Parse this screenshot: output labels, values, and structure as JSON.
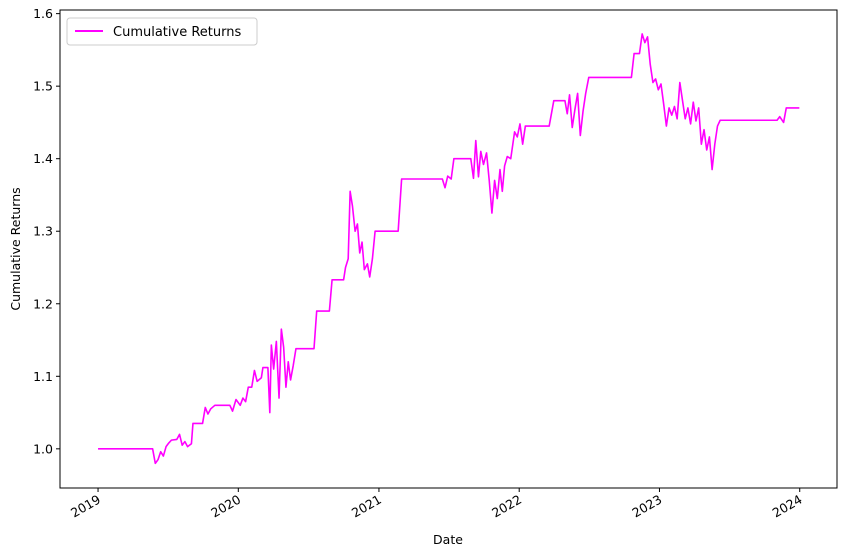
{
  "chart_data": {
    "type": "line",
    "xlabel": "Date",
    "ylabel": "Cumulative Returns",
    "legend": {
      "placement": "top-left",
      "entries": [
        "Cumulative Returns"
      ]
    },
    "grid": false,
    "xlim": [
      "2018-09-24",
      "2024-04-07"
    ],
    "ylim": [
      0.946,
      1.605
    ],
    "x_ticks": [
      {
        "date": "2019-01-01",
        "label": "2019"
      },
      {
        "date": "2020-01-01",
        "label": "2020"
      },
      {
        "date": "2021-01-01",
        "label": "2021"
      },
      {
        "date": "2022-01-01",
        "label": "2022"
      },
      {
        "date": "2023-01-01",
        "label": "2023"
      },
      {
        "date": "2024-01-01",
        "label": "2024"
      }
    ],
    "y_ticks": [
      1.0,
      1.1,
      1.2,
      1.3,
      1.4,
      1.5,
      1.6
    ],
    "series": [
      {
        "name": "Cumulative Returns",
        "color": "#ff00ff",
        "points": [
          [
            "2019-01-01",
            1.0
          ],
          [
            "2019-05-23",
            1.0
          ],
          [
            "2019-05-30",
            0.98
          ],
          [
            "2019-06-06",
            0.985
          ],
          [
            "2019-06-13",
            0.996
          ],
          [
            "2019-06-20",
            0.99
          ],
          [
            "2019-06-27",
            1.003
          ],
          [
            "2019-07-04",
            1.008
          ],
          [
            "2019-07-11",
            1.012
          ],
          [
            "2019-07-25",
            1.013
          ],
          [
            "2019-08-01",
            1.02
          ],
          [
            "2019-08-08",
            1.005
          ],
          [
            "2019-08-15",
            1.01
          ],
          [
            "2019-08-22",
            1.003
          ],
          [
            "2019-09-01",
            1.007
          ],
          [
            "2019-09-05",
            1.035
          ],
          [
            "2019-09-30",
            1.035
          ],
          [
            "2019-10-07",
            1.057
          ],
          [
            "2019-10-14",
            1.048
          ],
          [
            "2019-10-21",
            1.055
          ],
          [
            "2019-11-01",
            1.06
          ],
          [
            "2019-12-10",
            1.06
          ],
          [
            "2019-12-17",
            1.052
          ],
          [
            "2019-12-26",
            1.068
          ],
          [
            "2020-01-06",
            1.06
          ],
          [
            "2020-01-13",
            1.07
          ],
          [
            "2020-01-20",
            1.065
          ],
          [
            "2020-01-27",
            1.085
          ],
          [
            "2020-02-05",
            1.085
          ],
          [
            "2020-02-12",
            1.108
          ],
          [
            "2020-02-19",
            1.093
          ],
          [
            "2020-03-01",
            1.098
          ],
          [
            "2020-03-05",
            1.112
          ],
          [
            "2020-03-18",
            1.112
          ],
          [
            "2020-03-23",
            1.05
          ],
          [
            "2020-03-27",
            1.143
          ],
          [
            "2020-04-02",
            1.11
          ],
          [
            "2020-04-09",
            1.148
          ],
          [
            "2020-04-16",
            1.07
          ],
          [
            "2020-04-22",
            1.165
          ],
          [
            "2020-04-28",
            1.14
          ],
          [
            "2020-05-04",
            1.085
          ],
          [
            "2020-05-10",
            1.12
          ],
          [
            "2020-05-16",
            1.095
          ],
          [
            "2020-05-23",
            1.115
          ],
          [
            "2020-05-30",
            1.138
          ],
          [
            "2020-07-16",
            1.138
          ],
          [
            "2020-07-23",
            1.19
          ],
          [
            "2020-08-25",
            1.19
          ],
          [
            "2020-09-01",
            1.233
          ],
          [
            "2020-10-01",
            1.233
          ],
          [
            "2020-10-06",
            1.25
          ],
          [
            "2020-10-13",
            1.262
          ],
          [
            "2020-10-18",
            1.355
          ],
          [
            "2020-10-24",
            1.335
          ],
          [
            "2020-10-31",
            1.3
          ],
          [
            "2020-11-06",
            1.31
          ],
          [
            "2020-11-12",
            1.27
          ],
          [
            "2020-11-18",
            1.285
          ],
          [
            "2020-11-24",
            1.247
          ],
          [
            "2020-12-02",
            1.255
          ],
          [
            "2020-12-08",
            1.237
          ],
          [
            "2020-12-15",
            1.262
          ],
          [
            "2020-12-22",
            1.3
          ],
          [
            "2021-02-20",
            1.3
          ],
          [
            "2021-03-01",
            1.372
          ],
          [
            "2021-06-15",
            1.372
          ],
          [
            "2021-06-22",
            1.36
          ],
          [
            "2021-06-29",
            1.376
          ],
          [
            "2021-07-08",
            1.372
          ],
          [
            "2021-07-15",
            1.4
          ],
          [
            "2021-08-28",
            1.4
          ],
          [
            "2021-09-04",
            1.373
          ],
          [
            "2021-09-10",
            1.425
          ],
          [
            "2021-09-17",
            1.375
          ],
          [
            "2021-09-23",
            1.41
          ],
          [
            "2021-09-30",
            1.392
          ],
          [
            "2021-10-08",
            1.408
          ],
          [
            "2021-10-15",
            1.37
          ],
          [
            "2021-10-22",
            1.325
          ],
          [
            "2021-10-29",
            1.37
          ],
          [
            "2021-11-05",
            1.345
          ],
          [
            "2021-11-12",
            1.385
          ],
          [
            "2021-11-18",
            1.355
          ],
          [
            "2021-11-24",
            1.39
          ],
          [
            "2021-12-01",
            1.403
          ],
          [
            "2021-12-10",
            1.4
          ],
          [
            "2021-12-20",
            1.437
          ],
          [
            "2021-12-27",
            1.43
          ],
          [
            "2022-01-03",
            1.448
          ],
          [
            "2022-01-10",
            1.42
          ],
          [
            "2022-01-17",
            1.445
          ],
          [
            "2022-03-20",
            1.445
          ],
          [
            "2022-04-01",
            1.48
          ],
          [
            "2022-04-30",
            1.48
          ],
          [
            "2022-05-06",
            1.462
          ],
          [
            "2022-05-12",
            1.488
          ],
          [
            "2022-05-19",
            1.443
          ],
          [
            "2022-05-26",
            1.468
          ],
          [
            "2022-06-02",
            1.49
          ],
          [
            "2022-06-09",
            1.432
          ],
          [
            "2022-06-16",
            1.465
          ],
          [
            "2022-06-23",
            1.49
          ],
          [
            "2022-07-01",
            1.512
          ],
          [
            "2022-10-20",
            1.512
          ],
          [
            "2022-10-27",
            1.545
          ],
          [
            "2022-11-10",
            1.545
          ],
          [
            "2022-11-17",
            1.572
          ],
          [
            "2022-11-24",
            1.56
          ],
          [
            "2022-12-01",
            1.568
          ],
          [
            "2022-12-08",
            1.53
          ],
          [
            "2022-12-15",
            1.505
          ],
          [
            "2022-12-22",
            1.51
          ],
          [
            "2022-12-29",
            1.495
          ],
          [
            "2023-01-05",
            1.503
          ],
          [
            "2023-01-12",
            1.475
          ],
          [
            "2023-01-19",
            1.445
          ],
          [
            "2023-01-26",
            1.47
          ],
          [
            "2023-02-02",
            1.46
          ],
          [
            "2023-02-09",
            1.472
          ],
          [
            "2023-02-16",
            1.455
          ],
          [
            "2023-02-23",
            1.505
          ],
          [
            "2023-03-02",
            1.48
          ],
          [
            "2023-03-09",
            1.455
          ],
          [
            "2023-03-16",
            1.47
          ],
          [
            "2023-03-23",
            1.448
          ],
          [
            "2023-03-30",
            1.478
          ],
          [
            "2023-04-06",
            1.452
          ],
          [
            "2023-04-13",
            1.47
          ],
          [
            "2023-04-20",
            1.42
          ],
          [
            "2023-04-27",
            1.44
          ],
          [
            "2023-05-04",
            1.412
          ],
          [
            "2023-05-11",
            1.43
          ],
          [
            "2023-05-18",
            1.385
          ],
          [
            "2023-05-25",
            1.42
          ],
          [
            "2023-06-01",
            1.445
          ],
          [
            "2023-06-08",
            1.453
          ],
          [
            "2023-11-03",
            1.453
          ],
          [
            "2023-11-10",
            1.458
          ],
          [
            "2023-11-20",
            1.45
          ],
          [
            "2023-11-27",
            1.47
          ],
          [
            "2023-12-31",
            1.47
          ]
        ]
      }
    ]
  }
}
